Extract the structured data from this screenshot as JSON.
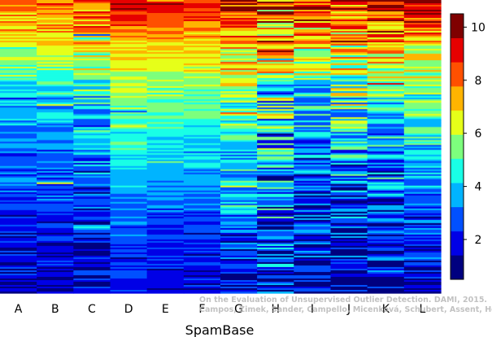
{
  "chart_data": {
    "type": "heatmap",
    "title": "",
    "xlabel": "SpamBase",
    "ylabel": "",
    "categories": [
      "A",
      "B",
      "C",
      "D",
      "E",
      "F",
      "G",
      "H",
      "I",
      "J",
      "K",
      "L"
    ],
    "row_order": "instances sorted from highest to lowest rank (top to bottom)",
    "value_range": [
      0.5,
      10.5
    ],
    "colorbar": {
      "ticks": [
        2,
        4,
        6,
        8,
        10
      ],
      "labels": [
        "2",
        "4",
        "6",
        "8",
        "10"
      ],
      "levels": [
        1,
        2,
        3,
        4,
        5,
        6,
        7,
        8,
        9,
        10
      ],
      "colors": [
        "#00007f",
        "#0000e6",
        "#0050ff",
        "#00b4ff",
        "#19ffe6",
        "#7dff7d",
        "#e6ff19",
        "#ffb400",
        "#ff5000",
        "#e60000",
        "#7f0000"
      ]
    },
    "column_profiles": [
      {
        "name": "A",
        "anchors": [
          [
            0,
            7.8
          ],
          [
            0.12,
            6.8
          ],
          [
            0.3,
            4.4
          ],
          [
            0.45,
            3.2
          ],
          [
            0.7,
            2.2
          ],
          [
            1,
            1.3
          ]
        ],
        "noise": 1.0
      },
      {
        "name": "B",
        "anchors": [
          [
            0,
            8.2
          ],
          [
            0.12,
            7.0
          ],
          [
            0.3,
            4.6
          ],
          [
            0.45,
            3.4
          ],
          [
            0.7,
            2.4
          ],
          [
            1,
            1.4
          ]
        ],
        "noise": 1.0
      },
      {
        "name": "C",
        "anchors": [
          [
            0,
            8.6
          ],
          [
            0.15,
            7.0
          ],
          [
            0.3,
            4.6
          ],
          [
            0.5,
            3.2
          ],
          [
            0.75,
            2.0
          ],
          [
            1,
            1.3
          ]
        ],
        "noise": 1.6
      },
      {
        "name": "D",
        "anchors": [
          [
            0,
            9.6
          ],
          [
            0.15,
            7.2
          ],
          [
            0.3,
            5.8
          ],
          [
            0.5,
            4.6
          ],
          [
            0.75,
            3.0
          ],
          [
            1,
            2.0
          ]
        ],
        "noise": 0.6
      },
      {
        "name": "E",
        "anchors": [
          [
            0,
            9.6
          ],
          [
            0.15,
            7.0
          ],
          [
            0.3,
            5.6
          ],
          [
            0.5,
            4.2
          ],
          [
            0.75,
            2.6
          ],
          [
            1,
            1.6
          ]
        ],
        "noise": 0.6
      },
      {
        "name": "F",
        "anchors": [
          [
            0,
            9.0
          ],
          [
            0.15,
            7.0
          ],
          [
            0.3,
            5.6
          ],
          [
            0.5,
            4.2
          ],
          [
            0.75,
            2.6
          ],
          [
            1,
            1.6
          ]
        ],
        "noise": 0.7
      },
      {
        "name": "G",
        "anchors": [
          [
            0,
            9.4
          ],
          [
            0.15,
            7.4
          ],
          [
            0.3,
            5.8
          ],
          [
            0.5,
            4.4
          ],
          [
            0.75,
            2.8
          ],
          [
            1,
            1.4
          ]
        ],
        "noise": 1.5
      },
      {
        "name": "H",
        "anchors": [
          [
            0,
            8.6
          ],
          [
            0.15,
            6.4
          ],
          [
            0.3,
            4.8
          ],
          [
            0.5,
            3.6
          ],
          [
            0.75,
            2.6
          ],
          [
            1,
            2.2
          ]
        ],
        "noise": 2.6
      },
      {
        "name": "I",
        "anchors": [
          [
            0,
            8.8
          ],
          [
            0.15,
            6.8
          ],
          [
            0.3,
            4.6
          ],
          [
            0.5,
            3.0
          ],
          [
            0.75,
            2.0
          ],
          [
            1,
            1.4
          ]
        ],
        "noise": 1.8
      },
      {
        "name": "J",
        "anchors": [
          [
            0,
            8.8
          ],
          [
            0.15,
            6.6
          ],
          [
            0.3,
            5.2
          ],
          [
            0.5,
            3.6
          ],
          [
            0.75,
            2.2
          ],
          [
            1,
            1.2
          ]
        ],
        "noise": 2.2
      },
      {
        "name": "K",
        "anchors": [
          [
            0,
            9.2
          ],
          [
            0.15,
            7.2
          ],
          [
            0.3,
            5.0
          ],
          [
            0.5,
            3.6
          ],
          [
            0.75,
            2.2
          ],
          [
            1,
            1.4
          ]
        ],
        "noise": 1.8
      },
      {
        "name": "L",
        "anchors": [
          [
            0,
            9.4
          ],
          [
            0.15,
            7.0
          ],
          [
            0.3,
            5.4
          ],
          [
            0.5,
            4.0
          ],
          [
            0.75,
            2.6
          ],
          [
            1,
            1.6
          ]
        ],
        "noise": 1.2
      }
    ]
  },
  "watermark": {
    "line1": "On the Evaluation of Unsupervised Outlier Detection. DAMI, 2015.",
    "line2": "Campos, Zimek, Sander, Campello, Micenková, Schubert, Assent, Houle"
  }
}
